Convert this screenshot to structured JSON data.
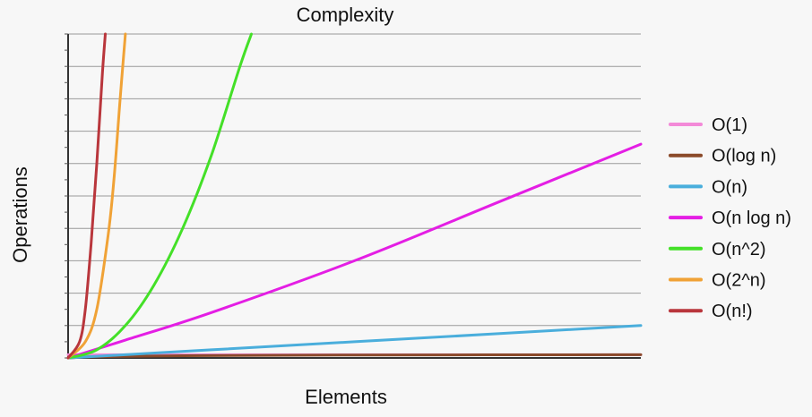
{
  "chart_data": {
    "type": "line",
    "title": "Complexity",
    "xlabel": "Elements",
    "ylabel": "Operations",
    "x_tick_labels_shown": false,
    "y_tick_labels_shown": false,
    "grid": "horizontal",
    "legend_position": "right",
    "xlim": [
      0,
      100
    ],
    "ylim": [
      0,
      100
    ],
    "series": [
      {
        "name": "O(1)",
        "color": "#f38ad8",
        "x": [
          0,
          100
        ],
        "y": [
          1,
          1
        ]
      },
      {
        "name": "O(log n)",
        "color": "#8b4a2a",
        "x": [
          0,
          5,
          20,
          50,
          100
        ],
        "y": [
          0,
          0.4,
          0.7,
          0.9,
          1
        ]
      },
      {
        "name": "O(n)",
        "color": "#4aaedc",
        "x": [
          0,
          25,
          50,
          75,
          100
        ],
        "y": [
          0,
          2.5,
          5,
          7.5,
          10
        ]
      },
      {
        "name": "O(n log n)",
        "color": "#e41ee4",
        "x": [
          0,
          10,
          25,
          50,
          75,
          100
        ],
        "y": [
          0,
          5.5,
          14,
          30,
          48,
          66
        ]
      },
      {
        "name": "O(n^2)",
        "color": "#44e028",
        "x": [
          0,
          5,
          10,
          15,
          20,
          25,
          30,
          32
        ],
        "y": [
          0,
          2.5,
          10,
          22.5,
          40,
          62.5,
          90,
          100
        ]
      },
      {
        "name": "O(2^n)",
        "color": "#f0a236",
        "x": [
          0,
          3,
          5,
          7,
          8,
          9,
          10
        ],
        "y": [
          0,
          5,
          15,
          38,
          55,
          78,
          100
        ]
      },
      {
        "name": "O(n!)",
        "color": "#b9363c",
        "x": [
          0,
          2,
          3,
          4,
          5,
          6,
          6.5
        ],
        "y": [
          0,
          5,
          15,
          35,
          60,
          88,
          100
        ]
      }
    ]
  }
}
